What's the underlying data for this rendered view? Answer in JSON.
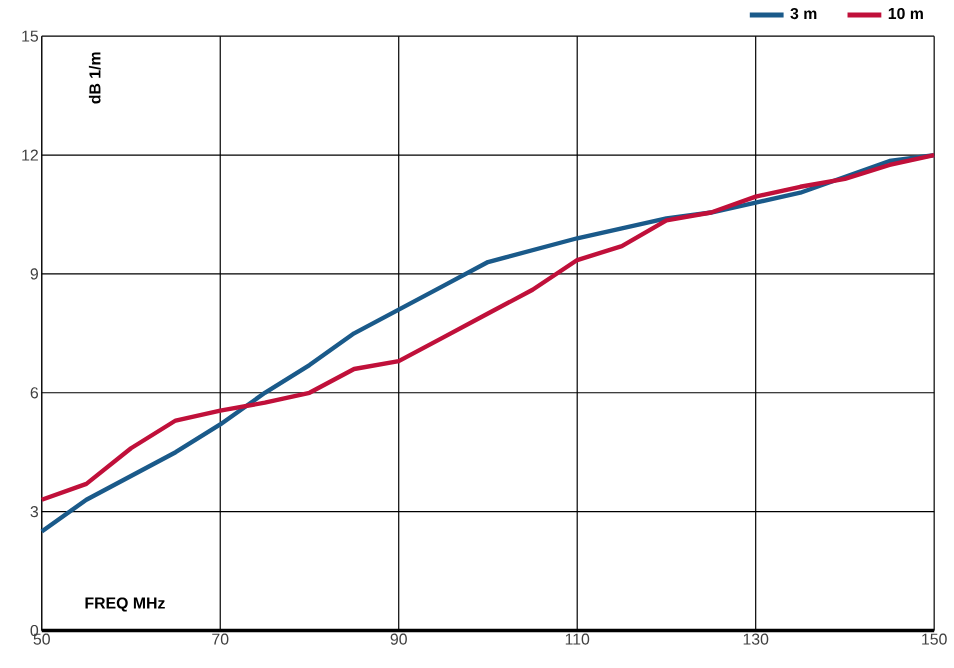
{
  "chart_data": {
    "type": "line",
    "xlabel": "FREQ  MHz",
    "ylabel": "dB 1/m",
    "x": [
      50,
      55,
      60,
      65,
      70,
      75,
      80,
      85,
      90,
      95,
      100,
      105,
      110,
      115,
      120,
      125,
      130,
      135,
      140,
      145,
      150
    ],
    "series": [
      {
        "name": "3 m",
        "color": "#1a5a8a",
        "values": [
          2.5,
          3.3,
          3.9,
          4.5,
          5.2,
          6.0,
          6.7,
          7.5,
          8.1,
          8.7,
          9.3,
          9.6,
          9.9,
          10.15,
          10.4,
          10.55,
          10.8,
          11.05,
          11.45,
          11.85,
          12.0
        ]
      },
      {
        "name": "10 m",
        "color": "#c0103a",
        "values": [
          3.3,
          3.7,
          4.6,
          5.3,
          5.55,
          5.75,
          6.0,
          6.6,
          6.8,
          7.4,
          8.0,
          8.6,
          9.35,
          9.7,
          10.35,
          10.55,
          10.95,
          11.2,
          11.4,
          11.75,
          12.0
        ]
      }
    ],
    "xlim": [
      50,
      150
    ],
    "xticks": [
      50,
      70,
      90,
      110,
      130,
      150
    ],
    "ylim": [
      0,
      15
    ],
    "yticks": [
      0,
      3,
      6,
      9,
      12,
      15
    ],
    "grid": true,
    "legend": "top right",
    "marker": "none",
    "line_style": "solid"
  }
}
